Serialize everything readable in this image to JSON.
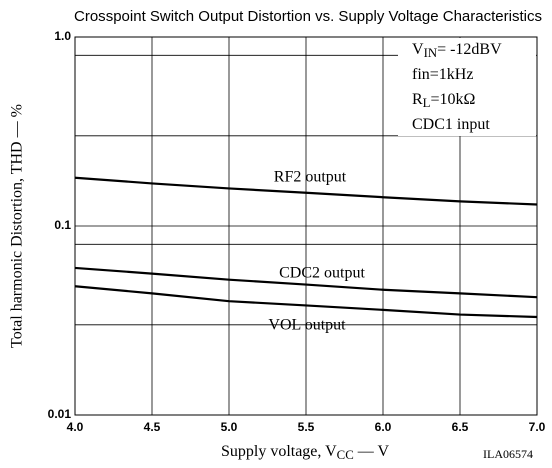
{
  "chart_data": {
    "type": "line",
    "title": "Crosspoint Switch Output Distortion vs. Supply Voltage Characteristics",
    "x_label": {
      "main": "Supply voltage, V",
      "sub": "CC",
      "rest": " — V"
    },
    "y_label": "Total harmonic Distortion, THD — %",
    "figure_id": "ILA06574",
    "annotations": [
      {
        "main": "V",
        "sub": "IN",
        "rest": "= -12dBV"
      },
      {
        "main": "fin=1kHz",
        "sub": "",
        "rest": ""
      },
      {
        "main": "R",
        "sub": "L",
        "rest": "=10kΩ"
      },
      {
        "main": "CDC1 input",
        "sub": "",
        "rest": ""
      }
    ],
    "x": [
      4.0,
      4.5,
      5.0,
      5.5,
      6.0,
      6.5,
      7.0
    ],
    "series": [
      {
        "name": "RF2 output",
        "color": "#000000",
        "values": [
          0.18,
          0.168,
          0.158,
          0.15,
          0.142,
          0.135,
          0.13
        ]
      },
      {
        "name": "CDC2 output",
        "color": "#000000",
        "values": [
          0.06,
          0.056,
          0.052,
          0.049,
          0.046,
          0.044,
          0.042
        ]
      },
      {
        "name": "VOL output",
        "color": "#000000",
        "values": [
          0.048,
          0.044,
          0.04,
          0.038,
          0.036,
          0.034,
          0.033
        ]
      }
    ],
    "xlim": [
      4,
      7
    ],
    "xticks": [
      {
        "value": 4,
        "label": "4.0"
      },
      4.5,
      {
        "value": 5,
        "label": "5.0"
      },
      5.5,
      {
        "value": 6,
        "label": "6.0"
      },
      6.5,
      {
        "value": 7,
        "label": "7.0"
      }
    ],
    "ylim": [
      0.01,
      1
    ],
    "yticks": [
      0.01,
      0.1,
      {
        "value": 1,
        "label": "1.0"
      }
    ],
    "y_minor_grid": [
      0.8,
      0.3,
      0.08,
      0.03
    ],
    "y_log": true,
    "grid": true
  }
}
